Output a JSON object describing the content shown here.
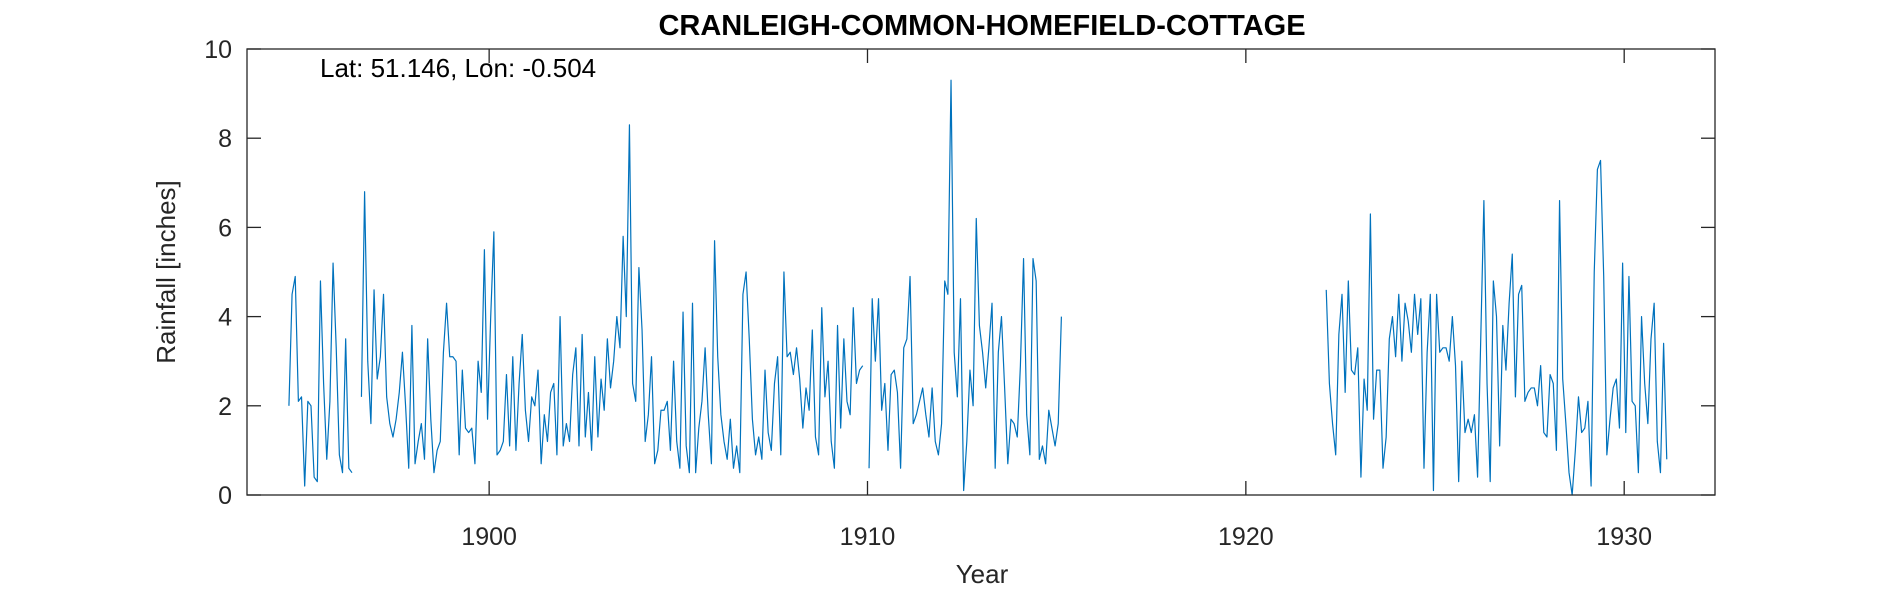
{
  "chart_data": {
    "type": "line",
    "title": "CRANLEIGH-COMMON-HOMEFIELD-COTTAGE",
    "xlabel": "Year",
    "ylabel": "Rainfall [inches]",
    "annotation": "Lat: 51.146, Lon: -0.504",
    "xlim": [
      1893.6,
      1932.4
    ],
    "ylim": [
      0,
      10
    ],
    "xticks": [
      1900,
      1910,
      1920,
      1930
    ],
    "yticks": [
      0,
      2,
      4,
      6,
      8,
      10
    ],
    "grid": false,
    "line_color": "#0072BD",
    "series": [
      {
        "segments": [
          {
            "start": 1894.708,
            "values": [
              2.0,
              4.5,
              4.9,
              2.1,
              2.2,
              0.2,
              2.1,
              2.0,
              0.4,
              0.3,
              4.8,
              2.5,
              0.8,
              2.1,
              5.2,
              3.3,
              0.9,
              0.5,
              3.5,
              0.6,
              0.5,
              null,
              null,
              2.2,
              6.8,
              3.0,
              1.6,
              4.6,
              2.6,
              3.1,
              4.5,
              2.2,
              1.6,
              1.3,
              1.7,
              2.3,
              3.2,
              2.0,
              0.6,
              3.8,
              0.7,
              1.2,
              1.6,
              0.8,
              3.5,
              1.7,
              0.5,
              1.0,
              1.2,
              3.2,
              4.3,
              3.1,
              3.1,
              3.0,
              0.9,
              2.8,
              1.5,
              1.4,
              1.5,
              0.7,
              3.0,
              2.3,
              5.5,
              1.7,
              4.0,
              5.9,
              0.9,
              1.0,
              1.2,
              2.7,
              1.1,
              3.1,
              1.0,
              2.5,
              3.6,
              1.9,
              1.2,
              2.2,
              2.0,
              2.8,
              0.7,
              1.8,
              1.2,
              2.3,
              2.5,
              0.9,
              4.0,
              1.1,
              1.6,
              1.2,
              2.7,
              3.3,
              1.1,
              3.6,
              1.3,
              2.3,
              1.0,
              3.1,
              1.3,
              2.6,
              1.9,
              3.5,
              2.4,
              3.0,
              4.0,
              3.3,
              5.8,
              4.0,
              8.3,
              2.5,
              2.1,
              5.1,
              3.7,
              1.2,
              1.8,
              3.1,
              0.7,
              1.0,
              1.9,
              1.9,
              2.1,
              1.0,
              3.0,
              1.2,
              0.6,
              4.1,
              1.1,
              0.5,
              4.3,
              0.5,
              1.5,
              2.1,
              3.3,
              1.8,
              0.7,
              5.7,
              3.1,
              1.8,
              1.2,
              0.8,
              1.7,
              0.6,
              1.1,
              0.5,
              4.5,
              5.0,
              3.5,
              1.7,
              0.9,
              1.3,
              0.8,
              2.8,
              1.4,
              1.0,
              2.5,
              3.1,
              0.9,
              5.0,
              3.1,
              3.2,
              2.7,
              3.3,
              2.6,
              1.5,
              2.4,
              1.9,
              3.7,
              1.3,
              0.9,
              4.2,
              2.2,
              3.0,
              1.2,
              0.6,
              3.8,
              1.5,
              3.5,
              2.1,
              1.8,
              4.2,
              2.5,
              2.8,
              2.9,
              null,
              0.6,
              4.4,
              3.0,
              4.4,
              1.9,
              2.5,
              1.0,
              2.7,
              2.8,
              2.3,
              0.6,
              3.3,
              3.5,
              4.9,
              1.6,
              1.8,
              2.1,
              2.4,
              1.8,
              1.3,
              2.4,
              1.2,
              0.9,
              1.6,
              4.8,
              4.5,
              9.3,
              3.2,
              2.2,
              4.4,
              0.1,
              1.2,
              2.8,
              2.0,
              6.2,
              3.8,
              3.2,
              2.4,
              3.3,
              4.3,
              0.6,
              3.2,
              4.0,
              2.4,
              0.7,
              1.7,
              1.6,
              1.3,
              2.9,
              5.3,
              1.8,
              0.9,
              5.3,
              4.8,
              0.8,
              1.1,
              0.7,
              1.9,
              1.5,
              1.1,
              1.6,
              4.0
            ]
          },
          {
            "start": 1922.125,
            "values": [
              4.6,
              2.5,
              1.6,
              0.9,
              3.6,
              4.5,
              2.3,
              4.8,
              2.8,
              2.7,
              3.3,
              0.4,
              2.6,
              1.9,
              6.3,
              1.7,
              2.8,
              2.8,
              0.6,
              1.3,
              3.5,
              4.0,
              3.1,
              4.5,
              3.0,
              4.3,
              3.9,
              3.2,
              4.5,
              3.6,
              4.4,
              0.6,
              3.2,
              4.5,
              0.1,
              4.5,
              3.2,
              3.3,
              3.3,
              3.0,
              4.0,
              2.9,
              0.3,
              3.0,
              1.4,
              1.7,
              1.4,
              1.8,
              0.4,
              3.5,
              6.6,
              2.5,
              0.3,
              4.8,
              4.0,
              1.1,
              3.8,
              2.8,
              4.3,
              5.4,
              2.2,
              4.5,
              4.7,
              2.1,
              2.3,
              2.4,
              2.4,
              2.0,
              2.9,
              1.4,
              1.3,
              2.7,
              2.5,
              1.0,
              6.6,
              2.6,
              1.6,
              0.5,
              0.0,
              1.0,
              2.2,
              1.4,
              1.5,
              2.1,
              0.2,
              5.0,
              7.3,
              7.5,
              4.9,
              0.9,
              1.7,
              2.4,
              2.6,
              1.5,
              5.2,
              1.4,
              4.9,
              2.1,
              2.0,
              0.5,
              4.0,
              2.5,
              1.6,
              3.5,
              4.3,
              1.2,
              0.5,
              3.4,
              0.8
            ]
          }
        ]
      }
    ]
  }
}
